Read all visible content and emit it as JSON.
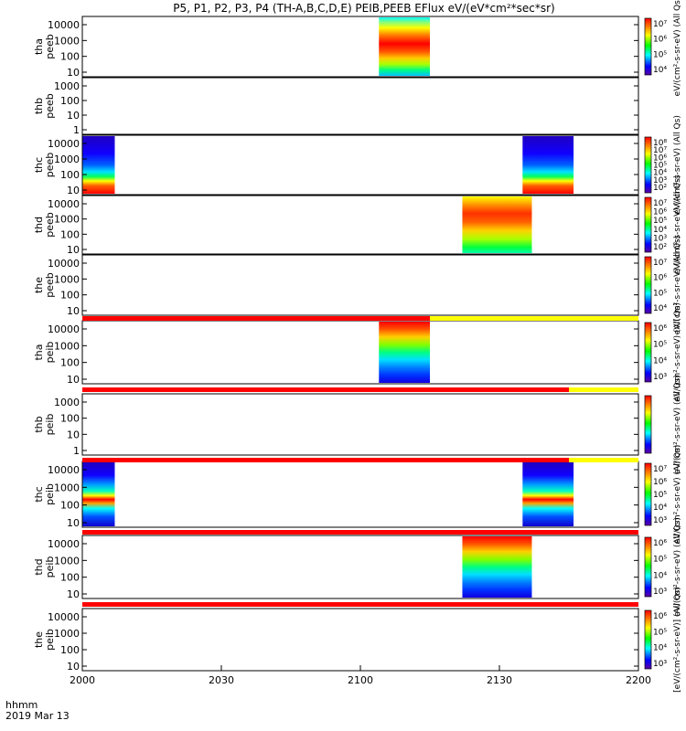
{
  "chart_data": {
    "type": "heatmap",
    "title": "P5, P1, P2, P3, P4 (TH-A,B,C,D,E) PEIB,PEEB EFlux eV/(eV*cm²*sec*sr)",
    "xlabel_line1": "hhmm",
    "xlabel_line2": "2019 Mar 13",
    "x_ticks": [
      "2000",
      "2030",
      "2100",
      "2130",
      "2200"
    ],
    "x_range": [
      "20:00",
      "22:00"
    ],
    "y_scale": "log",
    "colormap": "rainbow (purple-blue-cyan-green-yellow-red)",
    "panels": [
      {
        "name": "tha peeb",
        "line1": "tha",
        "line2": "peeb",
        "y_ticks": [
          "10000",
          "1000",
          "100",
          "10"
        ],
        "data_blocks": [
          {
            "x_start": "21:04",
            "x_end": "21:15",
            "profile": "electron-high"
          }
        ],
        "colorbar": {
          "ticks": [
            "10⁷",
            "10⁶",
            "10⁵",
            "10⁴"
          ],
          "label": "eV/(cm²-s-sr-eV) (All Qs)"
        }
      },
      {
        "name": "thb peeb",
        "line1": "thb",
        "line2": "peeb",
        "y_ticks": [
          "1000",
          "100",
          "10",
          "1"
        ],
        "data_blocks": []
      },
      {
        "name": "thc peeb",
        "line1": "thc",
        "line2": "peeb",
        "y_ticks": [
          "10000",
          "1000",
          "100",
          "10"
        ],
        "data_blocks": [
          {
            "x_start": "20:00",
            "x_end": "20:07",
            "profile": "electron-low"
          },
          {
            "x_start": "21:35",
            "x_end": "21:46",
            "profile": "electron-low"
          }
        ],
        "colorbar": {
          "ticks": [
            "10⁸",
            "10⁷",
            "10⁶",
            "10⁵",
            "10⁴",
            "10³",
            "10²"
          ],
          "label": "eV/(cm²-s-sr-eV) (All Qs)"
        }
      },
      {
        "name": "thd peeb",
        "line1": "thd",
        "line2": "peeb",
        "y_ticks": [
          "10000",
          "1000",
          "100",
          "10"
        ],
        "data_blocks": [
          {
            "x_start": "21:22",
            "x_end": "21:37",
            "profile": "electron-mid"
          }
        ],
        "colorbar": {
          "ticks": [
            "10⁷",
            "10⁶",
            "10⁵",
            "10⁴",
            "10³",
            "10²"
          ],
          "label": "eV/(cm²-s-sr-eV) (All Qs)"
        }
      },
      {
        "name": "the peeb",
        "line1": "the",
        "line2": "peeb",
        "y_ticks": [
          "10000",
          "1000",
          "100",
          "10"
        ],
        "data_blocks": [],
        "colorbar": {
          "ticks": [
            "10⁷",
            "10⁶",
            "10⁵",
            "10⁴"
          ],
          "label": "eV/(cm²-s-sr-eV) (All Qs)"
        }
      },
      {
        "name": "tha peib",
        "line1": "tha",
        "line2": "peib",
        "y_ticks": [
          "10000",
          "1000",
          "100",
          "10"
        ],
        "data_blocks": [
          {
            "x_start": "21:04",
            "x_end": "21:15",
            "profile": "ion"
          }
        ],
        "colorbar": {
          "ticks": [
            "10⁶",
            "10⁵",
            "10⁴",
            "10³"
          ],
          "label": "eV/(cm²-s-sr-eV) (All Qs)"
        }
      },
      {
        "name": "thb peib",
        "line1": "thb",
        "line2": "peib",
        "y_ticks": [
          "1000",
          "100",
          "10",
          "1"
        ],
        "data_blocks": [],
        "colorbar": {
          "ticks": [],
          "label": "eV/(cm²-s-sr-eV) (All Qs)"
        }
      },
      {
        "name": "thc peib",
        "line1": "thc",
        "line2": "peib",
        "y_ticks": [
          "10000",
          "1000",
          "100",
          "10"
        ],
        "data_blocks": [
          {
            "x_start": "20:00",
            "x_end": "20:07",
            "profile": "ion-low"
          },
          {
            "x_start": "21:35",
            "x_end": "21:46",
            "profile": "ion-low"
          }
        ],
        "colorbar": {
          "ticks": [
            "10⁷",
            "10⁶",
            "10⁵",
            "10⁴",
            "10³"
          ],
          "label": "eV/(cm²-s-sr-eV) (All Qs)"
        }
      },
      {
        "name": "thd peib",
        "line1": "thd",
        "line2": "peib",
        "y_ticks": [
          "10000",
          "1000",
          "100",
          "10"
        ],
        "data_blocks": [
          {
            "x_start": "21:22",
            "x_end": "21:37",
            "profile": "ion"
          }
        ],
        "colorbar": {
          "ticks": [
            "10⁶",
            "10⁵",
            "10⁴",
            "10³"
          ],
          "label": "eV/(cm²-s-sr-eV) (All Qs)"
        }
      },
      {
        "name": "the peib",
        "line1": "the",
        "line2": "peib",
        "y_ticks": [
          "10000",
          "1000",
          "100",
          "10"
        ],
        "data_blocks": [],
        "colorbar": {
          "ticks": [
            "10⁶",
            "10⁵",
            "10⁴",
            "10³"
          ],
          "label": "[eV/(cm²-s-sr-eV)] (All Qs)"
        }
      }
    ],
    "status_bars": [
      {
        "after_panel": "the peeb",
        "segments": [
          {
            "x_start": "20:00",
            "x_end": "21:15",
            "color": "#ff0000"
          },
          {
            "x_start": "21:15",
            "x_end": "22:00",
            "color": "#ffff00"
          }
        ]
      },
      {
        "after_panel": "tha peib",
        "segments": [
          {
            "x_start": "20:00",
            "x_end": "21:45",
            "color": "#ff0000"
          },
          {
            "x_start": "21:45",
            "x_end": "22:00",
            "color": "#ffff00"
          }
        ]
      },
      {
        "after_panel": "thb peib",
        "segments": [
          {
            "x_start": "20:00",
            "x_end": "21:45",
            "color": "#ff0000"
          },
          {
            "x_start": "21:45",
            "x_end": "22:00",
            "color": "#ffff00"
          }
        ]
      },
      {
        "after_panel": "thc peib",
        "segments": [
          {
            "x_start": "20:00",
            "x_end": "22:00",
            "color": "#ff0000"
          }
        ]
      },
      {
        "after_panel": "thd peib",
        "segments": [
          {
            "x_start": "20:00",
            "x_end": "22:00",
            "color": "#ff0000"
          }
        ]
      }
    ]
  }
}
